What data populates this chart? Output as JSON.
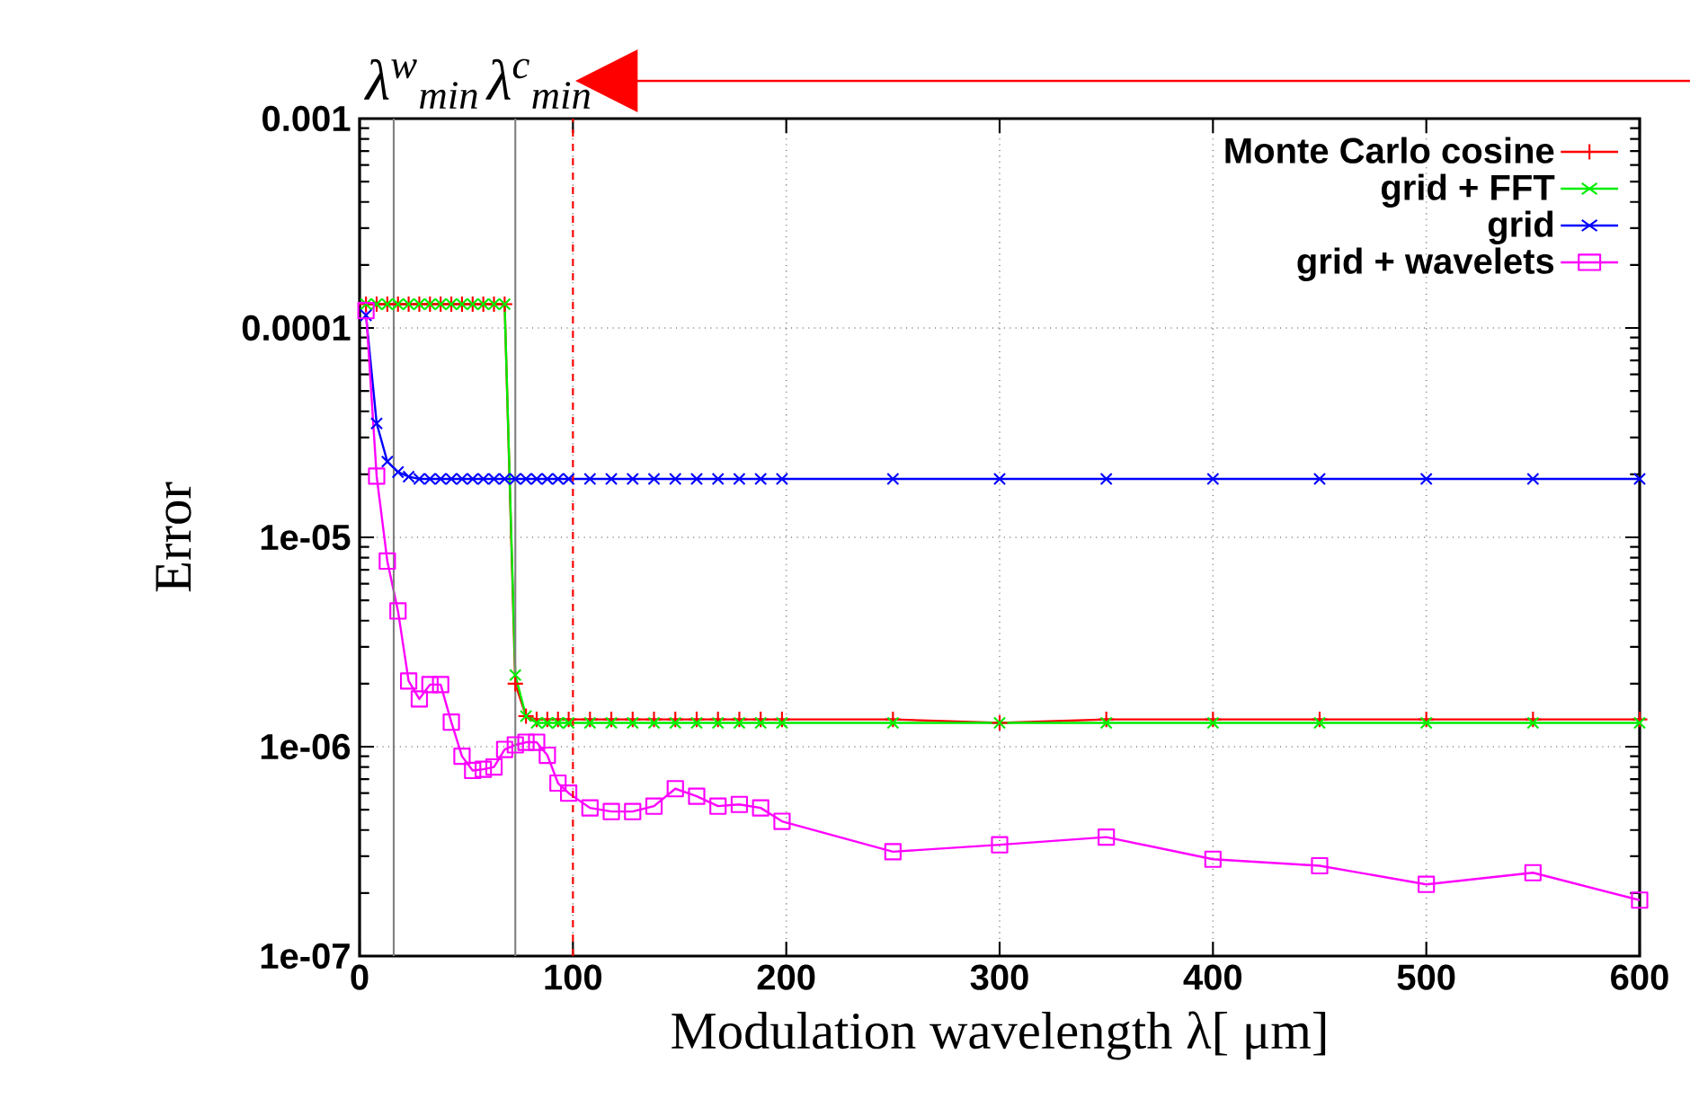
{
  "chart_data": {
    "type": "line",
    "xlabel": "Modulation wavelength λ[ μm]",
    "ylabel": "Error",
    "xlim": [
      0,
      600
    ],
    "xticks": [
      0,
      100,
      200,
      300,
      400,
      500,
      600
    ],
    "ylim": [
      1e-07,
      0.001
    ],
    "yticks": [
      {
        "value": 1e-07,
        "label": "1e-07"
      },
      {
        "value": 1e-06,
        "label": "1e-06"
      },
      {
        "value": 1e-05,
        "label": "1e-05"
      },
      {
        "value": 0.0001,
        "label": "0.0001"
      },
      {
        "value": 0.001,
        "label": "0.001"
      }
    ],
    "log": "y",
    "grid": true,
    "legend": "top right",
    "ref_lines": [
      {
        "axis": "x",
        "value": 16,
        "label": "λ$^{w}$$_{min}$",
        "color": "#808080"
      },
      {
        "axis": "x",
        "value": 73,
        "label": "λ$^{c}$$_{min}$",
        "color": "#808080"
      },
      {
        "axis": "x",
        "value": 100,
        "color": "#ff0000",
        "line_style": "dashed"
      }
    ],
    "series": [
      {
        "name": "Monte Carlo cosine",
        "color": "#ff0000",
        "marker": "plus",
        "x": [
          3,
          8,
          13,
          18,
          23,
          28,
          33,
          38,
          43,
          48,
          53,
          58,
          63,
          68,
          73,
          78,
          83,
          88,
          93,
          98,
          108,
          118,
          128,
          138,
          148,
          158,
          168,
          178,
          188,
          198,
          250,
          300,
          350,
          400,
          450,
          500,
          550,
          600
        ],
        "values": [
          0.00013,
          0.00013,
          0.00013,
          0.00013,
          0.00013,
          0.00013,
          0.00013,
          0.00013,
          0.00013,
          0.00013,
          0.00013,
          0.00013,
          0.00013,
          0.00013,
          2e-06,
          1.4e-06,
          1.35e-06,
          1.35e-06,
          1.35e-06,
          1.35e-06,
          1.35e-06,
          1.35e-06,
          1.35e-06,
          1.35e-06,
          1.35e-06,
          1.35e-06,
          1.35e-06,
          1.35e-06,
          1.35e-06,
          1.35e-06,
          1.35e-06,
          1.3e-06,
          1.35e-06,
          1.35e-06,
          1.35e-06,
          1.35e-06,
          1.35e-06,
          1.35e-06
        ]
      },
      {
        "name": "grid + FFT",
        "color": "#00ee00",
        "marker": "cross",
        "x": [
          3,
          8,
          13,
          18,
          23,
          28,
          33,
          38,
          43,
          48,
          53,
          58,
          63,
          68,
          73,
          78,
          83,
          88,
          93,
          98,
          108,
          118,
          128,
          138,
          148,
          158,
          168,
          178,
          188,
          198,
          250,
          300,
          350,
          400,
          450,
          500,
          550,
          600
        ],
        "values": [
          0.00013,
          0.00013,
          0.00013,
          0.00013,
          0.00013,
          0.00013,
          0.00013,
          0.00013,
          0.00013,
          0.00013,
          0.00013,
          0.00013,
          0.00013,
          0.00013,
          2.2e-06,
          1.4e-06,
          1.3e-06,
          1.3e-06,
          1.3e-06,
          1.3e-06,
          1.3e-06,
          1.3e-06,
          1.3e-06,
          1.3e-06,
          1.3e-06,
          1.3e-06,
          1.3e-06,
          1.3e-06,
          1.3e-06,
          1.3e-06,
          1.3e-06,
          1.3e-06,
          1.3e-06,
          1.3e-06,
          1.3e-06,
          1.3e-06,
          1.3e-06,
          1.3e-06
        ]
      },
      {
        "name": "grid",
        "color": "#0000ff",
        "marker": "cross",
        "x": [
          3,
          8,
          13,
          18,
          23,
          28,
          33,
          38,
          43,
          48,
          53,
          58,
          63,
          68,
          73,
          78,
          83,
          88,
          93,
          98,
          108,
          118,
          128,
          138,
          148,
          158,
          168,
          178,
          188,
          198,
          250,
          300,
          350,
          400,
          450,
          500,
          550,
          600
        ],
        "values": [
          0.000115,
          3.5e-05,
          2.3e-05,
          2.05e-05,
          1.95e-05,
          1.9e-05,
          1.9e-05,
          1.9e-05,
          1.9e-05,
          1.9e-05,
          1.9e-05,
          1.9e-05,
          1.9e-05,
          1.9e-05,
          1.9e-05,
          1.9e-05,
          1.9e-05,
          1.9e-05,
          1.9e-05,
          1.9e-05,
          1.9e-05,
          1.9e-05,
          1.9e-05,
          1.9e-05,
          1.9e-05,
          1.9e-05,
          1.9e-05,
          1.9e-05,
          1.9e-05,
          1.9e-05,
          1.9e-05,
          1.9e-05,
          1.9e-05,
          1.9e-05,
          1.9e-05,
          1.9e-05,
          1.9e-05,
          1.9e-05
        ]
      },
      {
        "name": "grid + wavelets",
        "color": "#ff00ff",
        "marker": "square",
        "x": [
          3,
          8,
          13,
          18,
          23,
          28,
          33,
          38,
          43,
          48,
          53,
          58,
          63,
          68,
          73,
          78,
          83,
          88,
          93,
          98,
          108,
          118,
          128,
          138,
          148,
          158,
          168,
          178,
          188,
          198,
          250,
          300,
          350,
          400,
          450,
          500,
          550,
          600
        ],
        "values": [
          0.000121,
          1.96e-05,
          7.7e-06,
          4.45e-06,
          2.06e-06,
          1.69e-06,
          1.98e-06,
          1.98e-06,
          1.31e-06,
          9e-07,
          7.7e-07,
          7.8e-07,
          8e-07,
          9.7e-07,
          1.02e-06,
          1.05e-06,
          1.05e-06,
          9.1e-07,
          6.7e-07,
          6e-07,
          5.1e-07,
          4.9e-07,
          4.9e-07,
          5.2e-07,
          6.3e-07,
          5.8e-07,
          5.2e-07,
          5.3e-07,
          5.1e-07,
          4.4e-07,
          3.15e-07,
          3.4e-07,
          3.7e-07,
          2.9e-07,
          2.7e-07,
          2.2e-07,
          2.5e-07,
          1.85e-07
        ]
      }
    ]
  }
}
